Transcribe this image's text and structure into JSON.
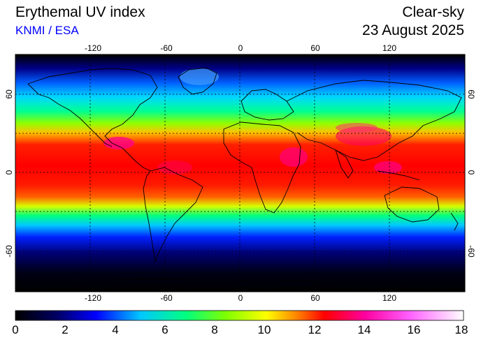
{
  "header": {
    "title": "Erythemal UV index",
    "credit": "KNMI / ESA",
    "mode": "Clear-sky",
    "date": "23 August 2025"
  },
  "map": {
    "lon_ticks": [
      "-120",
      "-60",
      "0",
      "60",
      "120"
    ],
    "lat_ticks": [
      "60",
      "0",
      "-60"
    ],
    "grid": true,
    "colors": {
      "ocean_dark": "#000000",
      "coastline": "#000000",
      "gridline": "#000000"
    }
  },
  "colorbar": {
    "min": 0,
    "max": 18,
    "labels": [
      "0",
      "2",
      "4",
      "6",
      "8",
      "10",
      "12",
      "14",
      "16",
      "18"
    ],
    "stops": [
      "#000000",
      "#000060",
      "#0000ff",
      "#00c8ff",
      "#00ff80",
      "#80ff00",
      "#ffff00",
      "#ff8000",
      "#ff0000",
      "#ff00a0",
      "#ff60ff",
      "#ffffff"
    ]
  }
}
